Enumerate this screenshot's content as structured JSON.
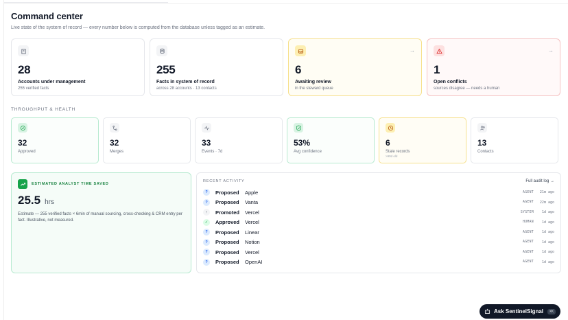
{
  "page": {
    "title": "Command center",
    "subtitle": "Live state of the system of record — every number below is computed from the database unless tagged as an estimate."
  },
  "kpis": [
    {
      "icon": "building-icon",
      "value": "28",
      "label": "Accounts under management",
      "sub": "255 verified facts"
    },
    {
      "icon": "database-icon",
      "value": "255",
      "label": "Facts in system of record",
      "sub": "across 28 accounts · 13 contacts"
    },
    {
      "icon": "inbox-icon",
      "value": "6",
      "label": "Awaiting review",
      "sub": "in the steward queue"
    },
    {
      "icon": "warning-icon",
      "value": "1",
      "label": "Open conflicts",
      "sub": "sources disagree — needs a human"
    }
  ],
  "throughput": {
    "title": "THROUGHPUT & HEALTH",
    "stats": [
      {
        "icon": "check-circle-icon",
        "value": "32",
        "label": "Approved",
        "sub": ""
      },
      {
        "icon": "merge-icon",
        "value": "32",
        "label": "Merges",
        "sub": ""
      },
      {
        "icon": "activity-icon",
        "value": "33",
        "label": "Events · 7d",
        "sub": ""
      },
      {
        "icon": "shield-check-icon",
        "value": "53%",
        "label": "Avg confidence",
        "sub": ""
      },
      {
        "icon": "clock-icon",
        "value": "6",
        "label": "Stale records",
        "sub": ">90d old"
      },
      {
        "icon": "users-icon",
        "value": "13",
        "label": "Contacts",
        "sub": ""
      }
    ]
  },
  "savings": {
    "title": "ESTIMATED ANALYST TIME SAVED",
    "value": "25.5",
    "unit": "hrs",
    "note": "Estimate — 255 verified facts × 6min of manual sourcing, cross-checking & CRM entry per fact. Illustrative, not measured."
  },
  "activity": {
    "title": "RECENT ACTIVITY",
    "link": "Full audit log →",
    "rows": [
      {
        "glyph": "?",
        "kind": "proposed",
        "verb": "Proposed",
        "target": "Apple",
        "actor": "AGENT",
        "time": "21m ago"
      },
      {
        "glyph": "?",
        "kind": "proposed",
        "verb": "Proposed",
        "target": "Vanta",
        "actor": "AGENT",
        "time": "22m ago"
      },
      {
        "glyph": "↑",
        "kind": "promoted",
        "verb": "Promoted",
        "target": "Vercel",
        "actor": "SYSTEM",
        "time": "1d ago"
      },
      {
        "glyph": "✓",
        "kind": "approved",
        "verb": "Approved",
        "target": "Vercel",
        "actor": "HUMAN",
        "time": "1d ago"
      },
      {
        "glyph": "?",
        "kind": "proposed",
        "verb": "Proposed",
        "target": "Linear",
        "actor": "AGENT",
        "time": "1d ago"
      },
      {
        "glyph": "?",
        "kind": "proposed",
        "verb": "Proposed",
        "target": "Notion",
        "actor": "AGENT",
        "time": "1d ago"
      },
      {
        "glyph": "?",
        "kind": "proposed",
        "verb": "Proposed",
        "target": "Vercel",
        "actor": "AGENT",
        "time": "1d ago"
      },
      {
        "glyph": "?",
        "kind": "proposed",
        "verb": "Proposed",
        "target": "OpenAI",
        "actor": "AGENT",
        "time": "1d ago"
      }
    ]
  },
  "assistant": {
    "label": "Ask SentinelSignal",
    "shortcut": "⌘K"
  },
  "colors": {
    "accent_green": "#16a34a",
    "warn_border": "#f6e08c",
    "danger_border": "#f5c2c2",
    "dark_button": "#111827"
  }
}
